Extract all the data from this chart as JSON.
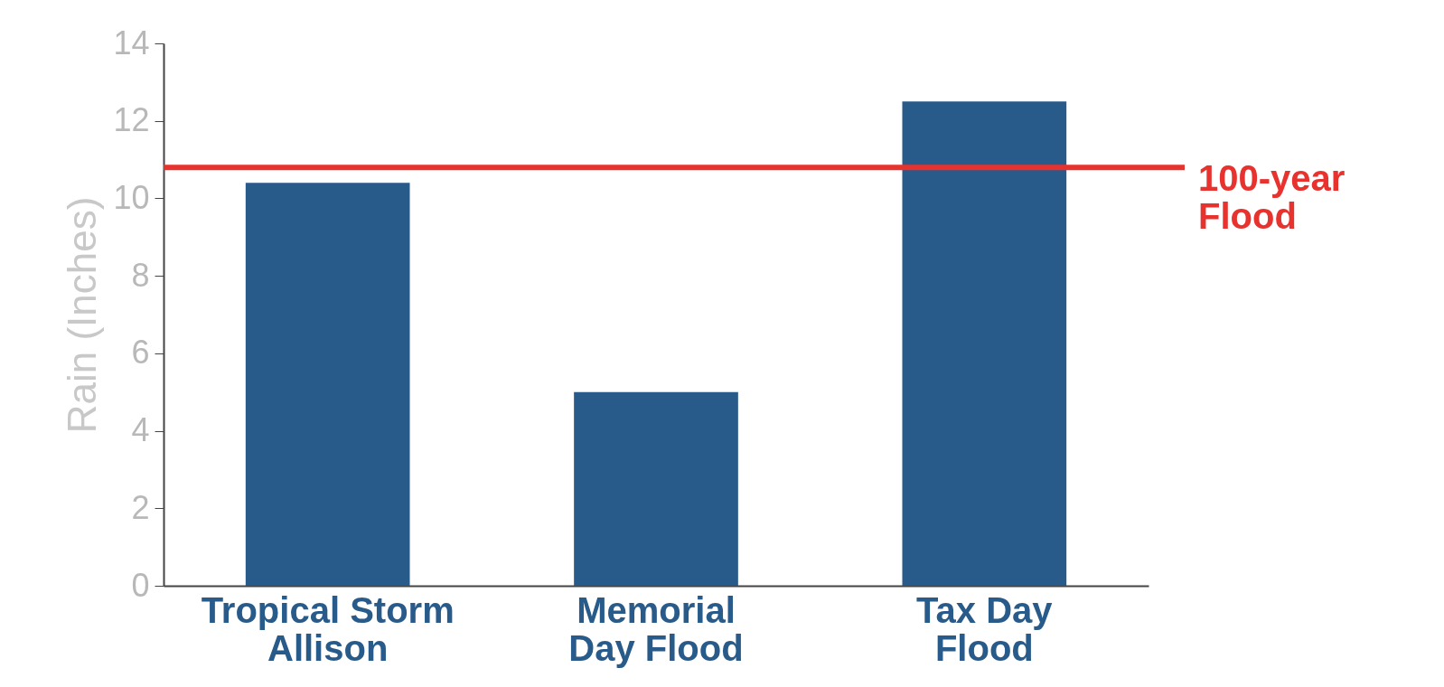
{
  "chart_data": {
    "type": "bar",
    "ylabel": "Rain (Inches)",
    "categories": [
      "Tropical Storm\nAllison",
      "Memorial\nDay Flood",
      "Tax Day\nFlood"
    ],
    "values": [
      10.4,
      5.0,
      12.5
    ],
    "color": "#285a8a",
    "ylim": [
      0,
      14
    ],
    "yticks": [
      0,
      2,
      4,
      6,
      8,
      10,
      12,
      14
    ],
    "grid": false,
    "ref_lines": [
      {
        "axis": "y",
        "value": 10.8,
        "label": "100-year\nFlood",
        "color": "#e8322e"
      }
    ]
  }
}
